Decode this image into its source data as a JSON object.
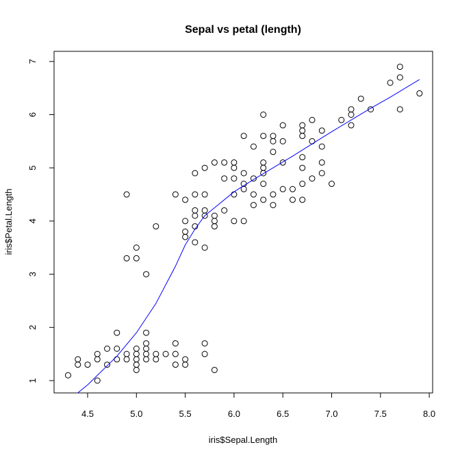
{
  "chart_data": {
    "type": "scatter",
    "title": "Sepal vs petal (length)",
    "xlabel": "iris$Sepal.Length",
    "ylabel": "iris$Petal.Length",
    "xlim": [
      4.3,
      7.9
    ],
    "ylim": [
      1.0,
      6.9
    ],
    "x_ticks": [
      "4.5",
      "5.0",
      "5.5",
      "6.0",
      "6.5",
      "7.0",
      "7.5",
      "8.0"
    ],
    "y_ticks": [
      "1",
      "2",
      "3",
      "4",
      "5",
      "6",
      "7"
    ],
    "grid": false,
    "legend": "none",
    "point_color": "#000000",
    "line_color": "#0000ff",
    "points": [
      [
        4.3,
        1.1
      ],
      [
        4.4,
        1.3
      ],
      [
        4.4,
        1.4
      ],
      [
        4.5,
        1.3
      ],
      [
        4.6,
        1.0
      ],
      [
        4.6,
        1.4
      ],
      [
        4.6,
        1.5
      ],
      [
        4.7,
        1.3
      ],
      [
        4.7,
        1.6
      ],
      [
        4.8,
        1.4
      ],
      [
        4.8,
        1.6
      ],
      [
        4.8,
        1.9
      ],
      [
        4.9,
        1.4
      ],
      [
        4.9,
        1.5
      ],
      [
        4.9,
        3.3
      ],
      [
        4.9,
        4.5
      ],
      [
        5.0,
        1.2
      ],
      [
        5.0,
        1.3
      ],
      [
        5.0,
        1.4
      ],
      [
        5.0,
        1.5
      ],
      [
        5.0,
        1.6
      ],
      [
        5.0,
        3.3
      ],
      [
        5.0,
        3.5
      ],
      [
        5.1,
        1.4
      ],
      [
        5.1,
        1.5
      ],
      [
        5.1,
        1.6
      ],
      [
        5.1,
        1.7
      ],
      [
        5.1,
        1.9
      ],
      [
        5.1,
        3.0
      ],
      [
        5.2,
        1.4
      ],
      [
        5.2,
        1.5
      ],
      [
        5.2,
        3.9
      ],
      [
        5.3,
        1.5
      ],
      [
        5.4,
        1.3
      ],
      [
        5.4,
        1.5
      ],
      [
        5.4,
        1.7
      ],
      [
        5.4,
        4.5
      ],
      [
        5.5,
        1.3
      ],
      [
        5.5,
        1.4
      ],
      [
        5.5,
        3.7
      ],
      [
        5.5,
        3.8
      ],
      [
        5.5,
        4.0
      ],
      [
        5.5,
        4.4
      ],
      [
        5.6,
        3.6
      ],
      [
        5.6,
        3.9
      ],
      [
        5.6,
        4.1
      ],
      [
        5.6,
        4.2
      ],
      [
        5.6,
        4.5
      ],
      [
        5.6,
        4.9
      ],
      [
        5.7,
        1.5
      ],
      [
        5.7,
        1.7
      ],
      [
        5.7,
        3.5
      ],
      [
        5.7,
        4.1
      ],
      [
        5.7,
        4.2
      ],
      [
        5.7,
        4.5
      ],
      [
        5.7,
        5.0
      ],
      [
        5.8,
        1.2
      ],
      [
        5.8,
        3.9
      ],
      [
        5.8,
        4.0
      ],
      [
        5.8,
        4.1
      ],
      [
        5.8,
        5.1
      ],
      [
        5.9,
        4.2
      ],
      [
        5.9,
        4.8
      ],
      [
        5.9,
        5.1
      ],
      [
        6.0,
        4.0
      ],
      [
        6.0,
        4.5
      ],
      [
        6.0,
        4.8
      ],
      [
        6.0,
        5.0
      ],
      [
        6.0,
        5.1
      ],
      [
        6.1,
        4.0
      ],
      [
        6.1,
        4.6
      ],
      [
        6.1,
        4.7
      ],
      [
        6.1,
        4.9
      ],
      [
        6.1,
        5.6
      ],
      [
        6.2,
        4.3
      ],
      [
        6.2,
        4.5
      ],
      [
        6.2,
        4.8
      ],
      [
        6.2,
        5.4
      ],
      [
        6.3,
        4.4
      ],
      [
        6.3,
        4.7
      ],
      [
        6.3,
        4.9
      ],
      [
        6.3,
        5.0
      ],
      [
        6.3,
        5.1
      ],
      [
        6.3,
        5.6
      ],
      [
        6.3,
        6.0
      ],
      [
        6.4,
        4.3
      ],
      [
        6.4,
        4.5
      ],
      [
        6.4,
        5.3
      ],
      [
        6.4,
        5.5
      ],
      [
        6.4,
        5.6
      ],
      [
        6.5,
        4.6
      ],
      [
        6.5,
        5.1
      ],
      [
        6.5,
        5.5
      ],
      [
        6.5,
        5.8
      ],
      [
        6.6,
        4.4
      ],
      [
        6.6,
        4.6
      ],
      [
        6.7,
        4.4
      ],
      [
        6.7,
        4.7
      ],
      [
        6.7,
        5.0
      ],
      [
        6.7,
        5.2
      ],
      [
        6.7,
        5.6
      ],
      [
        6.7,
        5.7
      ],
      [
        6.7,
        5.8
      ],
      [
        6.8,
        4.8
      ],
      [
        6.8,
        5.5
      ],
      [
        6.8,
        5.9
      ],
      [
        6.9,
        4.9
      ],
      [
        6.9,
        5.1
      ],
      [
        6.9,
        5.4
      ],
      [
        6.9,
        5.7
      ],
      [
        7.0,
        4.7
      ],
      [
        7.1,
        5.9
      ],
      [
        7.2,
        5.8
      ],
      [
        7.2,
        6.0
      ],
      [
        7.2,
        6.1
      ],
      [
        7.3,
        6.3
      ],
      [
        7.4,
        6.1
      ],
      [
        7.6,
        6.6
      ],
      [
        7.7,
        6.1
      ],
      [
        7.7,
        6.7
      ],
      [
        7.7,
        6.9
      ],
      [
        7.9,
        6.4
      ]
    ],
    "smooth_line": {
      "x": [
        4.3,
        4.5,
        4.8,
        5.0,
        5.2,
        5.4,
        5.5,
        5.6,
        5.7,
        5.8,
        6.0,
        6.2,
        6.4,
        6.6,
        6.8,
        7.0,
        7.2,
        7.4,
        7.6,
        7.9
      ],
      "y": [
        0.62,
        0.92,
        1.46,
        1.9,
        2.45,
        3.15,
        3.55,
        3.85,
        4.1,
        4.25,
        4.55,
        4.78,
        5.0,
        5.22,
        5.45,
        5.68,
        5.9,
        6.12,
        6.33,
        6.66
      ]
    }
  }
}
